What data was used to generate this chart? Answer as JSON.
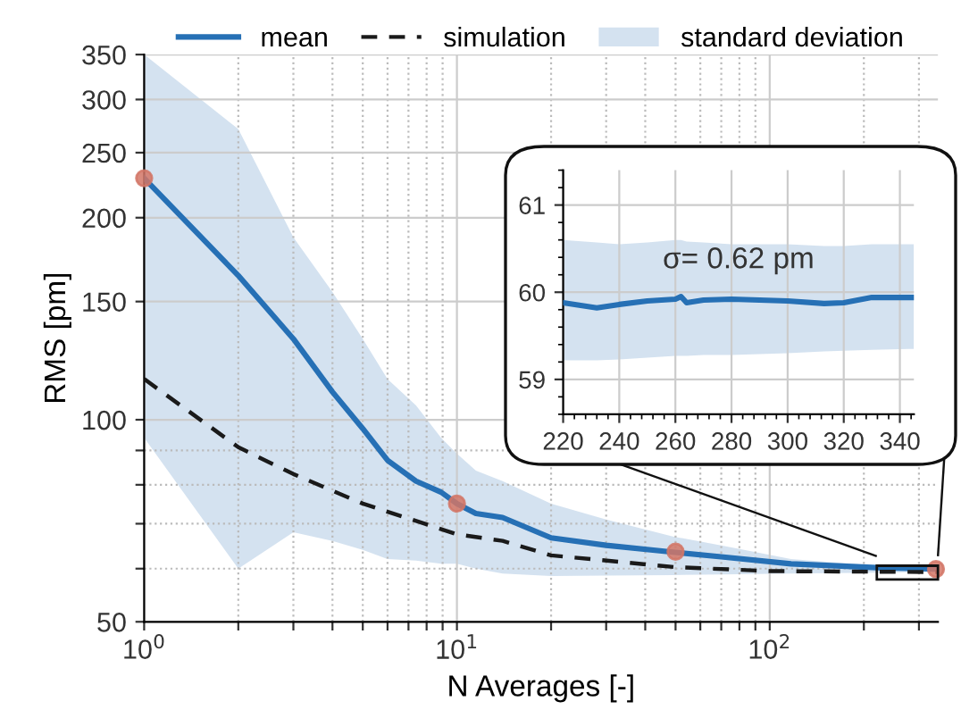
{
  "chart_data": [
    {
      "type": "line",
      "xlabel": "N Averages [-]",
      "ylabel": "RMS [pm]",
      "log": "xy",
      "grid": true,
      "legend": "top",
      "annotations": [
        "standard deviation"
      ],
      "xlim": [
        1,
        345
      ],
      "ylim": [
        50,
        350
      ],
      "xticks": [
        {
          "value": 1,
          "label": "10$^{0}$"
        },
        {
          "value": 2,
          "label": null
        },
        {
          "value": 3,
          "label": null
        },
        {
          "value": 4,
          "label": null
        },
        {
          "value": 5,
          "label": null
        },
        {
          "value": 6,
          "label": null
        },
        {
          "value": 7,
          "label": null
        },
        {
          "value": 8,
          "label": null
        },
        {
          "value": 9,
          "label": null
        },
        {
          "value": 10,
          "label": "10$^{1}$"
        },
        {
          "value": 20,
          "label": null
        },
        {
          "value": 30,
          "label": null
        },
        {
          "value": 40,
          "label": null
        },
        {
          "value": 50,
          "label": null
        },
        {
          "value": 60,
          "label": null
        },
        {
          "value": 70,
          "label": null
        },
        {
          "value": 80,
          "label": null
        },
        {
          "value": 90,
          "label": null
        },
        {
          "value": 100,
          "label": "10$^{2}$"
        },
        {
          "value": 200,
          "label": null
        },
        {
          "value": 300,
          "label": null
        }
      ],
      "yticks": [
        50,
        {
          "value": 60,
          "label": null
        },
        {
          "value": 70,
          "label": null
        },
        {
          "value": 80,
          "label": null
        },
        {
          "value": 90,
          "label": null
        },
        100,
        150,
        200,
        250,
        300,
        350
      ],
      "series": [
        {
          "name": "mean",
          "color": "#2670b5",
          "line_style": "solid",
          "x": [
            1,
            2,
            3,
            4,
            5,
            6,
            7.4,
            8.9,
            10,
            11.5,
            14,
            20,
            30,
            49,
            70,
            117,
            220,
            345
          ],
          "values": [
            229,
            164,
            132,
            110,
            97,
            87,
            81,
            78,
            75,
            72.5,
            71.5,
            66.7,
            65,
            63.5,
            62.5,
            61,
            60.2,
            59.9
          ],
          "upper": [
            350,
            271,
            187,
            155,
            132,
            115,
            105,
            94,
            89,
            84,
            81,
            75,
            71,
            67,
            65,
            62,
            60.6,
            60.6
          ],
          "lower": [
            94,
            60,
            68,
            66,
            64,
            62,
            61.7,
            61,
            61,
            60,
            59,
            58.5,
            58.6,
            58.7,
            58.8,
            59,
            59.2,
            59.3
          ]
        },
        {
          "name": "simulation",
          "color": "#1a1a1a",
          "line_style": "dashed",
          "x": [
            1,
            2,
            3,
            5,
            10,
            14,
            20,
            50,
            100,
            345
          ],
          "values": [
            115,
            91,
            83,
            75,
            67.5,
            66,
            62.8,
            60.3,
            59.5,
            59.3
          ]
        },
        {
          "type": "scatter",
          "color": "#d27566",
          "marker": "circle",
          "x": [
            1,
            10,
            50,
            340
          ],
          "values": [
            229,
            75,
            63.6,
            59.9
          ]
        }
      ]
    },
    {
      "type": "line",
      "annotations": [
        "σ= 0.62 pm"
      ],
      "grid": true,
      "xlim": [
        220,
        345
      ],
      "ylim": [
        58.6,
        61.4
      ],
      "xticks": [
        220,
        240,
        260,
        280,
        300,
        320,
        340
      ],
      "yticks": [
        59,
        60,
        61
      ],
      "series": [
        {
          "color": "#2670b5",
          "line_style": "solid",
          "x": [
            220,
            232,
            240,
            250,
            260,
            262,
            264,
            270,
            280,
            290,
            300,
            313,
            320,
            330,
            345
          ],
          "values": [
            59.88,
            59.82,
            59.86,
            59.9,
            59.92,
            59.95,
            59.88,
            59.91,
            59.92,
            59.91,
            59.9,
            59.87,
            59.88,
            59.94,
            59.94
          ],
          "upper": [
            60.6,
            60.57,
            60.55,
            60.57,
            60.6,
            60.6,
            60.58,
            60.57,
            60.55,
            60.55,
            60.55,
            60.53,
            60.53,
            60.55,
            60.55
          ],
          "lower": [
            59.22,
            59.22,
            59.23,
            59.25,
            59.27,
            59.27,
            59.27,
            59.28,
            59.28,
            59.29,
            59.3,
            59.32,
            59.33,
            59.34,
            59.35
          ]
        }
      ]
    }
  ]
}
